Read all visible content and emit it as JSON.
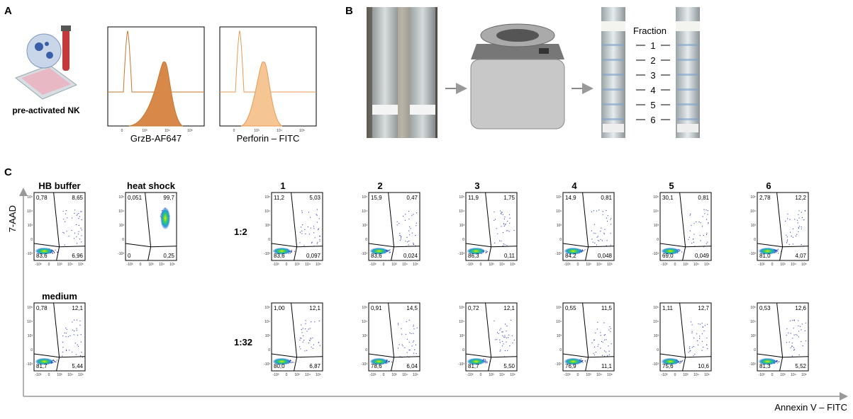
{
  "panel_a": {
    "label": "A",
    "cell_label": "pre-activated NK",
    "tick_labels": [
      "0",
      "10³",
      "10⁴",
      "10⁵"
    ],
    "histograms": [
      {
        "x_label": "GrzB-AF647"
      },
      {
        "x_label": "Perforin – FITC"
      }
    ]
  },
  "panel_b": {
    "label": "B",
    "fraction_title": "Fraction",
    "fractions": [
      "1",
      "2",
      "3",
      "4",
      "5",
      "6"
    ]
  },
  "panel_c": {
    "label": "C",
    "y_axis": "7-AAD",
    "x_axis": "Annexin V – FITC",
    "y_ticks": [
      "10⁵",
      "10⁴",
      "10³",
      "0",
      "-10³"
    ],
    "x_ticks": [
      "-10³",
      "0",
      "10³",
      "10⁴",
      "10⁵"
    ],
    "controls": [
      {
        "title": "HB buffer",
        "quadrants": [
          "0,78",
          "8,65",
          "83,6",
          "6,96"
        ]
      },
      {
        "title": "heat shock",
        "quadrants": [
          "0,051",
          "99,7",
          "0",
          "0,25"
        ]
      },
      {
        "title": "medium",
        "quadrants": [
          "0,78",
          "12,1",
          "81,7",
          "5,44"
        ]
      }
    ],
    "fraction_titles": [
      "1",
      "2",
      "3",
      "4",
      "5",
      "6"
    ],
    "dilutions": [
      {
        "label": "1:2",
        "plots": [
          {
            "quadrants": [
              "11,2",
              "5,03",
              "83,6",
              "0,097"
            ]
          },
          {
            "quadrants": [
              "15,9",
              "0,47",
              "83,6",
              "0,024"
            ]
          },
          {
            "quadrants": [
              "11,9",
              "1,75",
              "86,3",
              "0,11"
            ]
          },
          {
            "quadrants": [
              "14,9",
              "0,81",
              "84,2",
              "0,048"
            ]
          },
          {
            "quadrants": [
              "30,1",
              "0,81",
              "69,0",
              "0,049"
            ]
          },
          {
            "quadrants": [
              "2,78",
              "12,2",
              "81,0",
              "4,07"
            ]
          }
        ]
      },
      {
        "label": "1:32",
        "plots": [
          {
            "quadrants": [
              "1,00",
              "12,1",
              "80,0",
              "6,87"
            ]
          },
          {
            "quadrants": [
              "0,91",
              "14,5",
              "78,6",
              "6,04"
            ]
          },
          {
            "quadrants": [
              "0,72",
              "12,1",
              "81,7",
              "5,50"
            ]
          },
          {
            "quadrants": [
              "0,55",
              "11,5",
              "76,9",
              "11,1"
            ]
          },
          {
            "quadrants": [
              "1,11",
              "12,7",
              "75,6",
              "10,6"
            ]
          },
          {
            "quadrants": [
              "0,53",
              "12,6",
              "81,3",
              "5,52"
            ]
          }
        ]
      }
    ]
  }
}
